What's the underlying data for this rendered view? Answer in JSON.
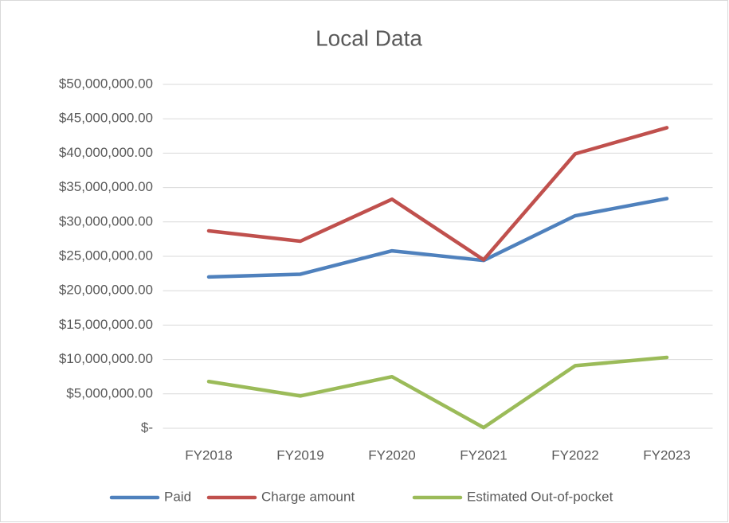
{
  "chart_data": {
    "type": "line",
    "title": "Local Data",
    "categories": [
      "FY2018",
      "FY2019",
      "FY2020",
      "FY2021",
      "FY2022",
      "FY2023"
    ],
    "series": [
      {
        "name": "Paid",
        "color": "#4f81bd",
        "values": [
          22000000,
          22400000,
          25800000,
          24400000,
          30900000,
          33400000
        ]
      },
      {
        "name": "Charge amount",
        "color": "#c0504d",
        "values": [
          28700000,
          27200000,
          33300000,
          24500000,
          39900000,
          43700000
        ]
      },
      {
        "name": "Estimated Out-of-pocket",
        "color": "#9bbb59",
        "values": [
          6800000,
          4700000,
          7500000,
          100000,
          9100000,
          10300000
        ]
      }
    ],
    "ylim": [
      0,
      50000000
    ],
    "yticks": [
      {
        "value": 0,
        "label": "$-"
      },
      {
        "value": 5000000,
        "label": "$5,000,000.00"
      },
      {
        "value": 10000000,
        "label": "$10,000,000.00"
      },
      {
        "value": 15000000,
        "label": "$15,000,000.00"
      },
      {
        "value": 20000000,
        "label": "$20,000,000.00"
      },
      {
        "value": 25000000,
        "label": "$25,000,000.00"
      },
      {
        "value": 30000000,
        "label": "$30,000,000.00"
      },
      {
        "value": 35000000,
        "label": "$35,000,000.00"
      },
      {
        "value": 40000000,
        "label": "$40,000,000.00"
      },
      {
        "value": 45000000,
        "label": "$45,000,000.00"
      },
      {
        "value": 50000000,
        "label": "$50,000,000.00"
      }
    ],
    "grid": true,
    "legend": "bottom"
  }
}
